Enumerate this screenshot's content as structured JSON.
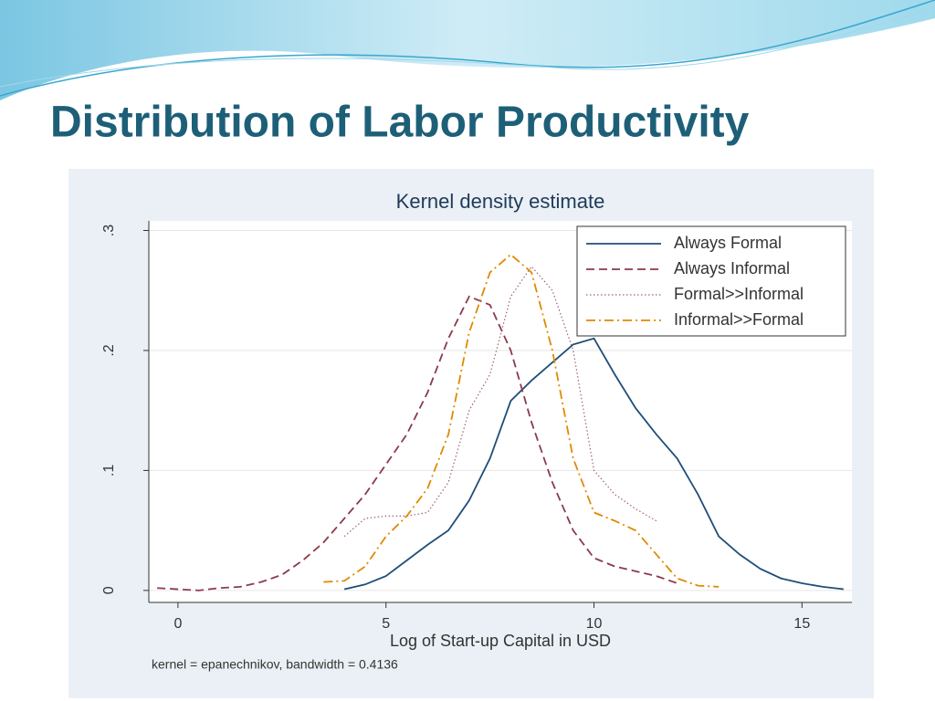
{
  "slide_title": "Distribution of Labor Productivity",
  "chart_data": {
    "type": "line",
    "title": "Kernel density estimate",
    "x_label": "Log of Start-up Capital in USD",
    "note": "kernel = epanechnikov, bandwidth = 0.4136",
    "x": [
      -0.5,
      0,
      0.5,
      1,
      1.5,
      2,
      2.5,
      3,
      3.5,
      4,
      4.5,
      5,
      5.5,
      6,
      6.5,
      7,
      7.5,
      8,
      8.5,
      9,
      9.5,
      10,
      10.5,
      11,
      11.5,
      12,
      12.5,
      13,
      13.5,
      14,
      14.5,
      15,
      15.5,
      16
    ],
    "series": [
      {
        "name": "Always Formal",
        "color": "#1f4e79",
        "style": "solid",
        "values": [
          null,
          null,
          null,
          null,
          null,
          null,
          null,
          null,
          null,
          0.001,
          0.005,
          0.012,
          0.025,
          0.038,
          0.05,
          0.075,
          0.11,
          0.158,
          0.175,
          0.19,
          0.205,
          0.21,
          0.18,
          0.152,
          0.13,
          0.11,
          0.08,
          0.045,
          0.03,
          0.018,
          0.01,
          0.006,
          0.003,
          0.001
        ]
      },
      {
        "name": "Always Informal",
        "color": "#8b3a4a",
        "style": "dashed",
        "values": [
          0.002,
          0.001,
          0.0,
          0.002,
          0.003,
          0.007,
          0.013,
          0.025,
          0.04,
          0.06,
          0.08,
          0.105,
          0.13,
          0.165,
          0.21,
          0.245,
          0.238,
          0.2,
          0.14,
          0.09,
          0.05,
          0.027,
          0.02,
          0.016,
          0.012,
          0.006,
          null,
          null,
          null,
          null,
          null,
          null,
          null,
          null
        ]
      },
      {
        "name": "Formal>>Informal",
        "color": "#a06070",
        "style": "dotted",
        "values": [
          null,
          null,
          null,
          null,
          null,
          null,
          null,
          null,
          null,
          0.045,
          0.06,
          0.062,
          0.062,
          0.065,
          0.09,
          0.15,
          0.18,
          0.245,
          0.27,
          0.25,
          0.2,
          0.1,
          0.08,
          0.068,
          0.058,
          null,
          null,
          null,
          null,
          null,
          null,
          null,
          null,
          null
        ]
      },
      {
        "name": "Informal>>Formal",
        "color": "#e08a00",
        "style": "dashdot",
        "values": [
          null,
          null,
          null,
          null,
          null,
          null,
          null,
          null,
          0.007,
          0.008,
          0.02,
          0.045,
          0.062,
          0.085,
          0.13,
          0.215,
          0.265,
          0.28,
          0.265,
          0.2,
          0.11,
          0.065,
          0.058,
          0.05,
          0.03,
          0.01,
          0.004,
          0.003,
          null,
          null,
          null,
          null,
          null,
          null
        ]
      }
    ],
    "xlim": [
      -0.7,
      16.2
    ],
    "ylim": [
      -0.01,
      0.308
    ],
    "xticks": [
      0,
      5,
      10,
      15
    ],
    "yticks": [
      0,
      {
        "value": 0.1,
        "label": ".1"
      },
      {
        "value": 0.2,
        "label": ".2"
      },
      {
        "value": 0.3,
        "label": ".3"
      }
    ],
    "grid": true,
    "legend": "top-right"
  }
}
